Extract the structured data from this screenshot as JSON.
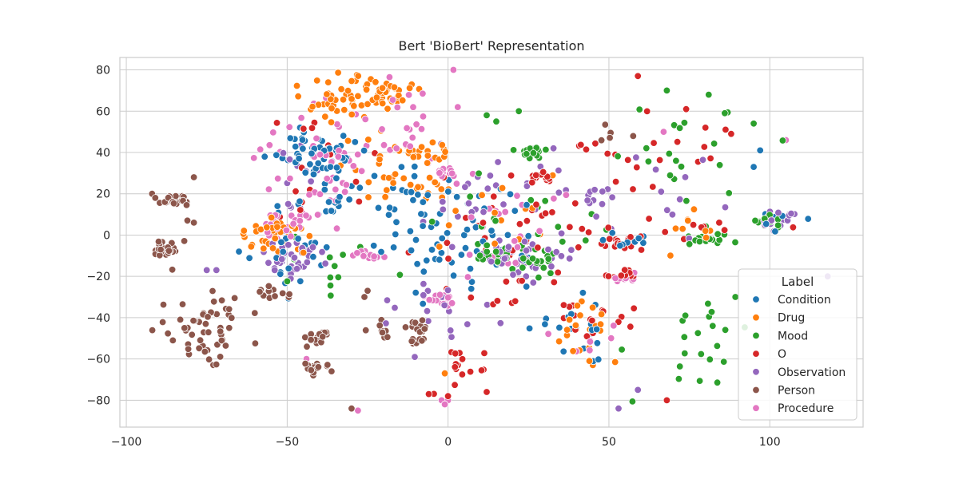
{
  "chart_data": {
    "type": "scatter",
    "title": "Bert 'BioBert' Representation",
    "xlabel": "",
    "ylabel": "",
    "xlim": [
      -102,
      129
    ],
    "ylim": [
      -93,
      86
    ],
    "xticks": [
      -100,
      -50,
      0,
      50,
      100
    ],
    "yticks": [
      -80,
      -60,
      -40,
      -20,
      0,
      20,
      40,
      60,
      80
    ],
    "grid": true,
    "legend": {
      "title": "Label",
      "position": "lower-right"
    },
    "series": [
      {
        "name": "Condition",
        "color": "#1f77b4",
        "clusters": [
          {
            "cx": -40,
            "cy": 40,
            "sx": 6,
            "sy": 6,
            "n": 50
          },
          {
            "cx": -35,
            "cy": 20,
            "sx": 8,
            "sy": 10,
            "n": 25
          },
          {
            "cx": -48,
            "cy": -8,
            "sx": 5,
            "sy": 8,
            "n": 25
          },
          {
            "cx": -15,
            "cy": 10,
            "sx": 10,
            "sy": 12,
            "n": 30
          },
          {
            "cx": 12,
            "cy": -5,
            "sx": 15,
            "sy": 15,
            "n": 45
          },
          {
            "cx": 40,
            "cy": -45,
            "sx": 6,
            "sy": 8,
            "n": 20
          },
          {
            "cx": 55,
            "cy": -3,
            "sx": 4,
            "sy": 3,
            "n": 10
          },
          {
            "cx": 100,
            "cy": 5,
            "sx": 5,
            "sy": 4,
            "n": 6
          }
        ],
        "points": [
          [
            -65,
            -8
          ],
          [
            -46,
            52
          ],
          [
            -57,
            38
          ],
          [
            97,
            41
          ],
          [
            95,
            33
          ],
          [
            -34,
            14
          ]
        ]
      },
      {
        "name": "Drug",
        "color": "#ff7f0e",
        "clusters": [
          {
            "cx": -30,
            "cy": 65,
            "sx": 7,
            "sy": 6,
            "n": 45
          },
          {
            "cx": -20,
            "cy": 70,
            "sx": 5,
            "sy": 4,
            "n": 30
          },
          {
            "cx": -10,
            "cy": 40,
            "sx": 7,
            "sy": 3,
            "n": 25
          },
          {
            "cx": -15,
            "cy": 25,
            "sx": 8,
            "sy": 4,
            "n": 25
          },
          {
            "cx": -55,
            "cy": 0,
            "sx": 5,
            "sy": 6,
            "n": 35
          },
          {
            "cx": 40,
            "cy": -45,
            "sx": 7,
            "sy": 8,
            "n": 20
          },
          {
            "cx": 10,
            "cy": 5,
            "sx": 15,
            "sy": 12,
            "n": 15
          },
          {
            "cx": 75,
            "cy": 0,
            "sx": 6,
            "sy": 5,
            "n": 8
          }
        ],
        "points": [
          [
            45,
            -63
          ],
          [
            -1,
            -67
          ],
          [
            80,
            2
          ]
        ]
      },
      {
        "name": "Mood",
        "color": "#2ca02c",
        "clusters": [
          {
            "cx": 27,
            "cy": 40,
            "sx": 2,
            "sy": 1.3,
            "n": 20
          },
          {
            "cx": 15,
            "cy": -10,
            "sx": 3,
            "sy": 3,
            "n": 20
          },
          {
            "cx": 28,
            "cy": -12,
            "sx": 4,
            "sy": 3,
            "n": 20
          },
          {
            "cx": 80,
            "cy": -2,
            "sx": 4,
            "sy": 1.5,
            "n": 15
          },
          {
            "cx": 100,
            "cy": 6,
            "sx": 3,
            "sy": 2,
            "n": 10
          },
          {
            "cx": 65,
            "cy": 35,
            "sx": 12,
            "sy": 15,
            "n": 18
          },
          {
            "cx": 80,
            "cy": -50,
            "sx": 10,
            "sy": 15,
            "n": 22
          },
          {
            "cx": 30,
            "cy": 5,
            "sx": 15,
            "sy": 12,
            "n": 20
          },
          {
            "cx": -40,
            "cy": -15,
            "sx": 10,
            "sy": 8,
            "n": 12
          }
        ],
        "points": [
          [
            68,
            70
          ],
          [
            81,
            68
          ],
          [
            95,
            54
          ],
          [
            86,
            59
          ],
          [
            22,
            60
          ],
          [
            12,
            58
          ],
          [
            15,
            55
          ]
        ]
      },
      {
        "name": "O",
        "color": "#d62728",
        "clusters": [
          {
            "cx": 30,
            "cy": 29,
            "sx": 2,
            "sy": 1.5,
            "n": 15
          },
          {
            "cx": 55,
            "cy": -3,
            "sx": 3,
            "sy": 2,
            "n": 15
          },
          {
            "cx": 55,
            "cy": -20,
            "sx": 2,
            "sy": 1.5,
            "n": 10
          },
          {
            "cx": 5,
            "cy": -65,
            "sx": 5,
            "sy": 5,
            "n": 15
          },
          {
            "cx": 60,
            "cy": 40,
            "sx": 12,
            "sy": 12,
            "n": 20
          },
          {
            "cx": 20,
            "cy": 0,
            "sx": 15,
            "sy": 15,
            "n": 45
          },
          {
            "cx": 80,
            "cy": 2,
            "sx": 8,
            "sy": 3,
            "n": 8
          },
          {
            "cx": -40,
            "cy": 30,
            "sx": 10,
            "sy": 15,
            "n": 15
          },
          {
            "cx": 45,
            "cy": -40,
            "sx": 8,
            "sy": 6,
            "n": 15
          }
        ],
        "points": [
          [
            59,
            77
          ],
          [
            74,
            61
          ],
          [
            80,
            52
          ],
          [
            88,
            49
          ],
          [
            0,
            -78
          ],
          [
            -6,
            -77
          ],
          [
            68,
            -80
          ],
          [
            12,
            -76
          ]
        ]
      },
      {
        "name": "Observation",
        "color": "#9467bd",
        "clusters": [
          {
            "cx": -48,
            "cy": -12,
            "sx": 5,
            "sy": 4,
            "n": 40
          },
          {
            "cx": 25,
            "cy": -12,
            "sx": 8,
            "sy": 6,
            "n": 35
          },
          {
            "cx": 10,
            "cy": 15,
            "sx": 15,
            "sy": 12,
            "n": 30
          },
          {
            "cx": 100,
            "cy": 6,
            "sx": 4,
            "sy": 3,
            "n": 15
          },
          {
            "cx": -5,
            "cy": -35,
            "sx": 10,
            "sy": 8,
            "n": 20
          },
          {
            "cx": 45,
            "cy": 20,
            "sx": 6,
            "sy": 5,
            "n": 12
          },
          {
            "cx": -45,
            "cy": 30,
            "sx": 6,
            "sy": 8,
            "n": 15
          },
          {
            "cx": 70,
            "cy": 20,
            "sx": 10,
            "sy": 15,
            "n": 10
          }
        ],
        "points": [
          [
            118,
            -20
          ],
          [
            53,
            -84
          ],
          [
            59,
            -75
          ],
          [
            -72,
            -17
          ],
          [
            -75,
            -17
          ]
        ]
      },
      {
        "name": "Person",
        "color": "#8c564b",
        "clusters": [
          {
            "cx": -75,
            "cy": -45,
            "sx": 8,
            "sy": 9,
            "n": 55
          },
          {
            "cx": -85,
            "cy": 17,
            "sx": 2.5,
            "sy": 2,
            "n": 20
          },
          {
            "cx": -87,
            "cy": -7,
            "sx": 2,
            "sy": 2,
            "n": 20
          },
          {
            "cx": -41,
            "cy": -50,
            "sx": 1.8,
            "sy": 2,
            "n": 15
          },
          {
            "cx": -41,
            "cy": -64,
            "sx": 2,
            "sy": 1.5,
            "n": 15
          },
          {
            "cx": -10,
            "cy": -45,
            "sx": 2,
            "sy": 1.5,
            "n": 12
          },
          {
            "cx": -8,
            "cy": -51,
            "sx": 2,
            "sy": 1,
            "n": 8
          },
          {
            "cx": -55,
            "cy": -28,
            "sx": 2,
            "sy": 1.5,
            "n": 10
          },
          {
            "cx": -20,
            "cy": -45,
            "sx": 3,
            "sy": 3,
            "n": 8
          },
          {
            "cx": 50,
            "cy": 50,
            "sx": 3,
            "sy": 3,
            "n": 5
          }
        ],
        "points": [
          [
            -79,
            28
          ],
          [
            -92,
            20
          ],
          [
            -91,
            18
          ],
          [
            -30,
            -84
          ],
          [
            -25,
            -27
          ],
          [
            -26,
            -30
          ],
          [
            106,
            10
          ],
          [
            -79,
            6
          ],
          [
            -81,
            7
          ]
        ]
      },
      {
        "name": "Procedure",
        "color": "#e377c2",
        "clusters": [
          {
            "cx": -40,
            "cy": 35,
            "sx": 8,
            "sy": 12,
            "n": 45
          },
          {
            "cx": -50,
            "cy": 5,
            "sx": 4,
            "sy": 4,
            "n": 25
          },
          {
            "cx": -25,
            "cy": -10,
            "sx": 2.5,
            "sy": 1.3,
            "n": 12
          },
          {
            "cx": -2,
            "cy": -31,
            "sx": 3,
            "sy": 2,
            "n": 18
          },
          {
            "cx": 0,
            "cy": 31,
            "sx": 3,
            "sy": 1.5,
            "n": 12
          },
          {
            "cx": 55,
            "cy": -20,
            "sx": 2,
            "sy": 1.5,
            "n": 10
          },
          {
            "cx": -15,
            "cy": 55,
            "sx": 12,
            "sy": 12,
            "n": 25
          },
          {
            "cx": 20,
            "cy": 0,
            "sx": 15,
            "sy": 15,
            "n": 20
          },
          {
            "cx": 45,
            "cy": -50,
            "sx": 10,
            "sy": 8,
            "n": 10
          }
        ],
        "points": [
          [
            105,
            46
          ],
          [
            -1,
            -82
          ],
          [
            -2,
            -80
          ],
          [
            0,
            -80
          ],
          [
            -44,
            -60
          ],
          [
            -28,
            -85
          ],
          [
            67,
            50
          ]
        ]
      }
    ]
  }
}
